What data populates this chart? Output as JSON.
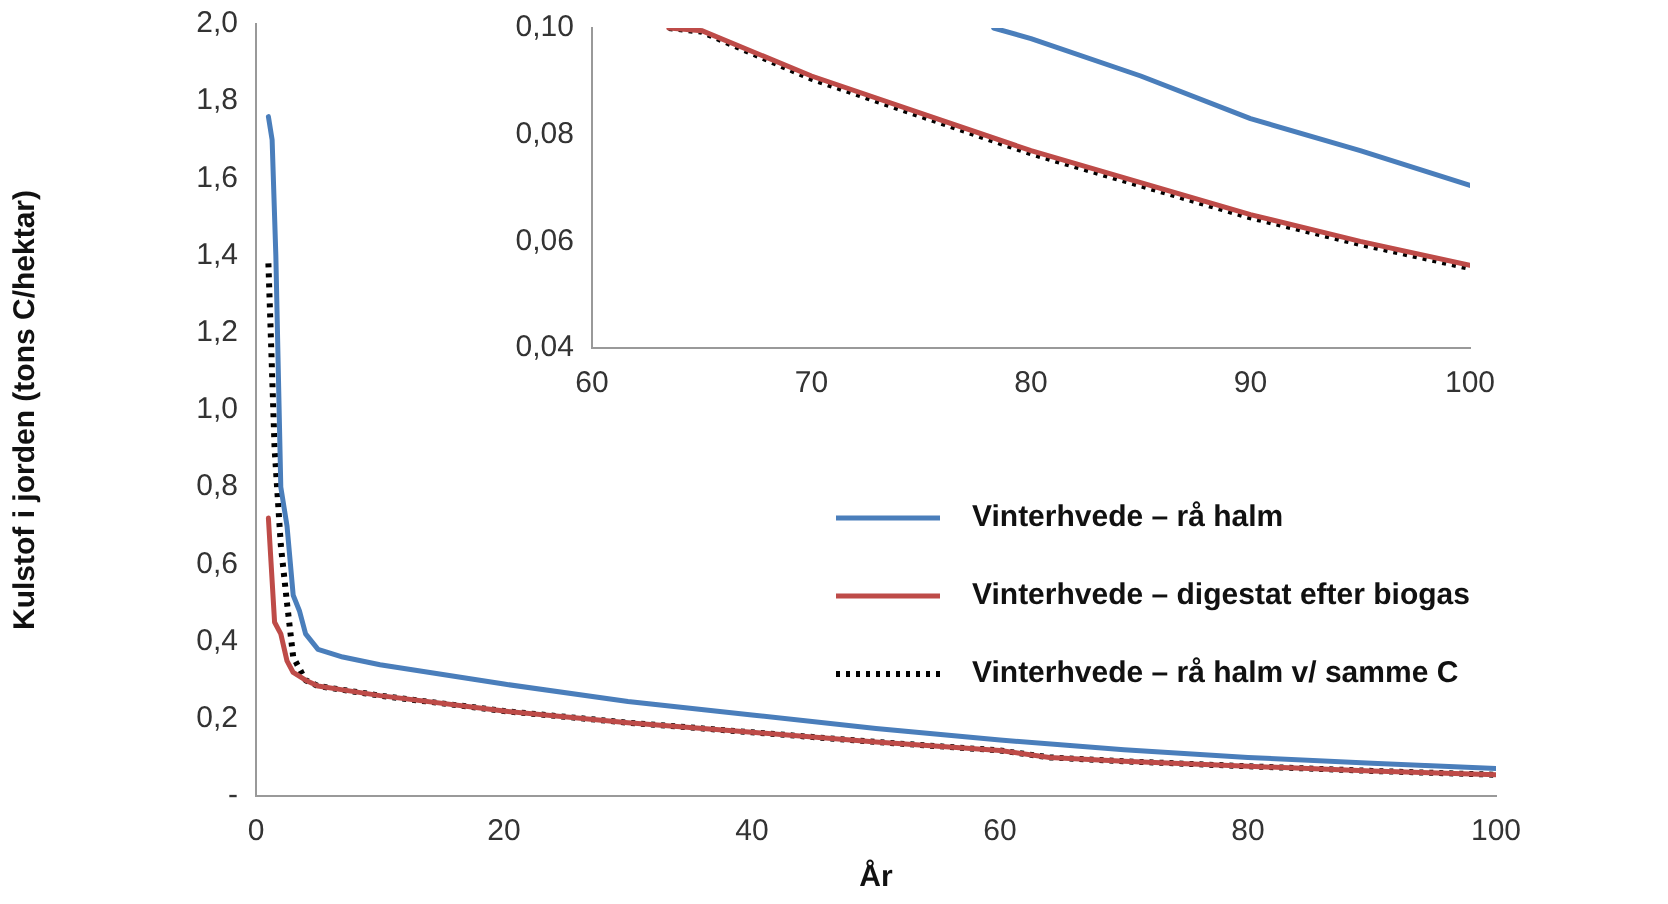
{
  "chart_data": [
    {
      "type": "line",
      "xlabel": "År",
      "ylabel": "Kulstof i jorden (tons C/hektar)",
      "legend": "right",
      "grid": false,
      "marker": "none",
      "xlim": [
        0,
        100
      ],
      "xticks": [
        0,
        20,
        40,
        60,
        80,
        100
      ],
      "ylim": [
        0,
        2
      ],
      "yticks": [
        {
          "value": 0,
          "label": "-"
        },
        {
          "value": 0.2,
          "label": "0,2"
        },
        {
          "value": 0.4,
          "label": "0,4"
        },
        {
          "value": 0.6,
          "label": "0,6"
        },
        {
          "value": 0.8,
          "label": "0,8"
        },
        {
          "value": 1,
          "label": "1,0"
        },
        {
          "value": 1.2,
          "label": "1,2"
        },
        {
          "value": 1.4,
          "label": "1,4"
        },
        {
          "value": 1.6,
          "label": "1,6"
        },
        {
          "value": 1.8,
          "label": "1,8"
        },
        {
          "value": 2,
          "label": "2,0"
        }
      ],
      "series": [
        {
          "name": "Vinterhvede – rå halm",
          "color": "#4a7ebb",
          "line_style": "solid",
          "x": [
            1,
            1.3,
            1.6,
            2,
            2.5,
            3,
            3.5,
            4,
            5,
            7,
            10,
            20,
            30,
            40,
            50,
            60,
            70,
            80,
            90,
            100
          ],
          "values": [
            1.76,
            1.7,
            1.4,
            0.8,
            0.7,
            0.52,
            0.48,
            0.42,
            0.38,
            0.36,
            0.34,
            0.29,
            0.245,
            0.21,
            0.175,
            0.145,
            0.12,
            0.1,
            0.085,
            0.071
          ]
        },
        {
          "name": "Vinterhvede – digestat efter biogas",
          "color": "#be4b48",
          "line_style": "solid",
          "x": [
            1,
            1.5,
            2,
            2.5,
            3,
            4,
            5,
            7,
            10,
            20,
            30,
            40,
            50,
            60,
            64,
            70,
            80,
            90,
            100
          ],
          "values": [
            0.72,
            0.45,
            0.42,
            0.35,
            0.32,
            0.3,
            0.285,
            0.275,
            0.26,
            0.22,
            0.19,
            0.165,
            0.14,
            0.118,
            0.1,
            0.09,
            0.077,
            0.065,
            0.055
          ]
        },
        {
          "name": "Vinterhvede – rå halm v/ samme C",
          "color": "#000000",
          "line_style": "dotted",
          "x": [
            1,
            1.5,
            2,
            2.5,
            3,
            4,
            5,
            7,
            10,
            20,
            30,
            40,
            50,
            60,
            64,
            70,
            80,
            90,
            100
          ],
          "values": [
            1.38,
            0.9,
            0.65,
            0.5,
            0.36,
            0.3,
            0.285,
            0.275,
            0.26,
            0.22,
            0.19,
            0.165,
            0.14,
            0.118,
            0.1,
            0.09,
            0.077,
            0.065,
            0.055
          ]
        }
      ]
    },
    {
      "type": "line",
      "grid": false,
      "marker": "none",
      "xlim": [
        60,
        100
      ],
      "xticks": [
        60,
        70,
        80,
        90,
        100
      ],
      "ylim": [
        0.04,
        0.1
      ],
      "yticks": [
        {
          "value": 0.04,
          "label": "0,04"
        },
        {
          "value": 0.06,
          "label": "0,06"
        },
        {
          "value": 0.08,
          "label": "0,08"
        },
        {
          "value": 0.1,
          "label": "0,10"
        }
      ],
      "series": [
        {
          "color": "#4a7ebb",
          "line_style": "solid",
          "x": [
            78.3,
            80,
            85,
            90,
            95,
            100
          ],
          "values": [
            0.1,
            0.098,
            0.091,
            0.083,
            0.077,
            0.0705
          ]
        },
        {
          "color": "#be4b48",
          "line_style": "solid",
          "x": [
            63.5,
            65,
            70,
            75,
            80,
            85,
            90,
            95,
            100
          ],
          "values": [
            0.1,
            0.0995,
            0.091,
            0.084,
            0.077,
            0.071,
            0.065,
            0.06,
            0.0555
          ]
        },
        {
          "color": "#000000",
          "line_style": "dotted",
          "x": [
            63.5,
            65,
            70,
            75,
            80,
            85,
            90,
            95,
            100
          ],
          "values": [
            0.1,
            0.0993,
            0.0905,
            0.0835,
            0.0765,
            0.0705,
            0.0645,
            0.0595,
            0.055
          ]
        }
      ]
    }
  ]
}
